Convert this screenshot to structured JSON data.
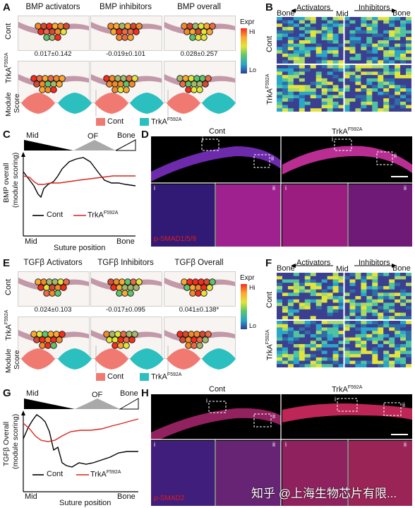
{
  "panelA": {
    "label": "A",
    "titles": [
      "BMP activators",
      "BMP inhibitors",
      "BMP overall"
    ],
    "row_cont": "Cont",
    "row_trka_base": "TrkA",
    "row_trka_sup": "F592A",
    "values": [
      "0.017±0.142",
      "-0.019±0.101",
      "0.028±0.257"
    ],
    "module_label": "Module",
    "score_label": "Score",
    "expr_title": "Expr",
    "expr_hi": "Hi",
    "expr_lo": "Lo",
    "legend_cont": "Cont",
    "legend_trka_base": "TrkA",
    "legend_trka_sup": "F592A"
  },
  "panelB": {
    "label": "B",
    "activators": "Activators",
    "inhibitors": "Inhibitors",
    "bone_left": "Bone",
    "mid": "Mid",
    "bone_right": "Bone",
    "row_cont": "Cont",
    "row_trka_base": "TrkA",
    "row_trka_sup": "F592A"
  },
  "panelC": {
    "label": "C",
    "mid": "Mid",
    "of": "OF",
    "bone": "Bone",
    "ylabel1": "BMP overall",
    "ylabel2": "(module scoring)",
    "x_mid": "Mid",
    "x_bone": "Bone",
    "xlabel": "Suture position",
    "legend_cont": "Cont",
    "legend_trka_base": "TrkA",
    "legend_trka_sup": "F592A"
  },
  "panelD": {
    "label": "D",
    "cont": "Cont",
    "trka_base": "TrkA",
    "trka_sup": "F592A",
    "inset_i": "i",
    "inset_ii": "ii",
    "stain": "p-SMAD1/5/9"
  },
  "panelE": {
    "label": "E",
    "titles": [
      "TGFβ Activators",
      "TGFβ Inhibitors",
      "TGFβ Overall"
    ],
    "row_cont": "Cont",
    "row_trka_base": "TrkA",
    "row_trka_sup": "F592A",
    "values": [
      "0.024±0.103",
      "-0.017±0.095",
      "0.041±0.138*"
    ],
    "module_label": "Module",
    "score_label": "Score",
    "expr_title": "Expr",
    "expr_hi": "Hi",
    "expr_lo": "Lo",
    "legend_cont": "Cont",
    "legend_trka_base": "TrkA",
    "legend_trka_sup": "F592A"
  },
  "panelF": {
    "label": "F",
    "activators": "Activators",
    "inhibitors": "Inhibitors",
    "bone_left": "Bone",
    "mid": "Mid",
    "bone_right": "Bone",
    "row_cont": "Cont",
    "row_trka_base": "TrkA",
    "row_trka_sup": "F592A"
  },
  "panelG": {
    "label": "G",
    "mid": "Mid",
    "of": "OF",
    "bone": "Bone",
    "ylabel1": "TGFβ Overall",
    "ylabel2": "(module scoring)",
    "x_mid": "Mid",
    "x_bone": "Bone",
    "xlabel": "Suture position",
    "legend_cont": "Cont",
    "legend_trka_base": "TrkA",
    "legend_trka_sup": "F592A"
  },
  "panelH": {
    "label": "H",
    "cont": "Cont",
    "trka_base": "TrkA",
    "trka_sup": "F592A",
    "inset_i": "i",
    "inset_ii": "ii",
    "stain": "p-SMAD2"
  },
  "watermark": "知乎 @上海生物芯片有限...",
  "colors": {
    "cont": "#f07a72",
    "trka": "#2bbfbf",
    "cont_line": "#000000",
    "trka_line": "#d9231d",
    "heatmap_base": "#3b3f8f",
    "stain_magenta": "#e01fbf",
    "stain_red": "#e01b1b"
  }
}
